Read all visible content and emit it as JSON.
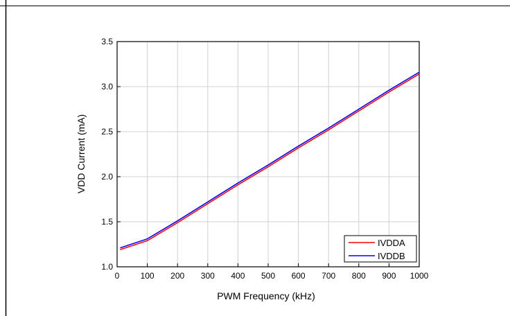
{
  "chart_data": {
    "type": "line",
    "title": "",
    "xlabel": "PWM Frequency (kHz)",
    "ylabel": "VDD Current (mA)",
    "xlim": [
      0,
      1000
    ],
    "ylim": [
      1.0,
      3.5
    ],
    "x_ticks": [
      0,
      100,
      200,
      300,
      400,
      500,
      600,
      700,
      800,
      900,
      1000
    ],
    "y_ticks": [
      "1.0",
      "1.5",
      "2.0",
      "2.5",
      "3.0",
      "3.5"
    ],
    "grid": true,
    "legend_position": "bottom-right",
    "series": [
      {
        "name": "IVDDA",
        "color": "#ff0000",
        "x": [
          10,
          100,
          200,
          300,
          400,
          500,
          600,
          700,
          800,
          900,
          1000
        ],
        "values": [
          1.19,
          1.29,
          1.49,
          1.7,
          1.91,
          2.11,
          2.32,
          2.52,
          2.73,
          2.94,
          3.14
        ]
      },
      {
        "name": "IVDDB",
        "color": "#0000ff",
        "x": [
          10,
          100,
          200,
          300,
          400,
          500,
          600,
          700,
          800,
          900,
          1000
        ],
        "values": [
          1.21,
          1.31,
          1.51,
          1.72,
          1.93,
          2.13,
          2.34,
          2.54,
          2.75,
          2.96,
          3.16
        ]
      }
    ]
  }
}
